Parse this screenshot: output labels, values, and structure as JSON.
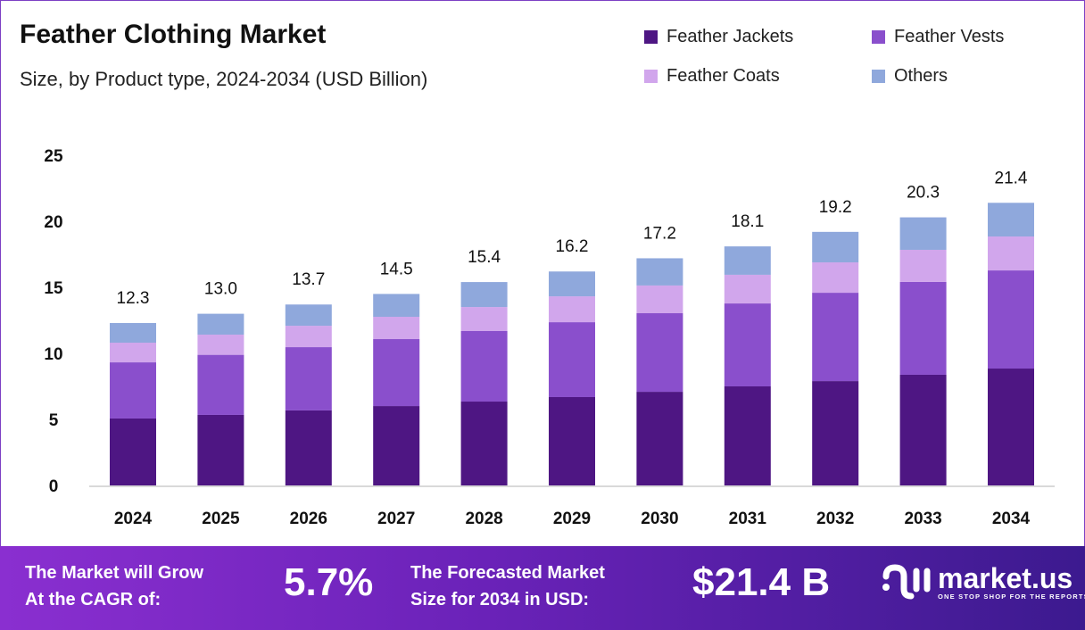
{
  "chart_data": {
    "type": "bar",
    "stacked": true,
    "title": "Feather Clothing Market",
    "subtitle": "Size, by Product type, 2024-2034 (USD Billion)",
    "categories": [
      "2024",
      "2025",
      "2026",
      "2027",
      "2028",
      "2029",
      "2030",
      "2031",
      "2032",
      "2033",
      "2034"
    ],
    "series": [
      {
        "name": "Feather Jackets",
        "color": "#4e1683",
        "values": [
          5.07,
          5.34,
          5.68,
          6.01,
          6.35,
          6.69,
          7.09,
          7.5,
          7.9,
          8.38,
          8.85
        ]
      },
      {
        "name": "Feather Vests",
        "color": "#8a4fcc",
        "values": [
          4.25,
          4.55,
          4.79,
          5.07,
          5.34,
          5.67,
          5.95,
          6.28,
          6.69,
          7.03,
          7.43
        ]
      },
      {
        "name": "Feather Coats",
        "color": "#d1a6ec",
        "values": [
          1.49,
          1.53,
          1.62,
          1.69,
          1.82,
          1.96,
          2.1,
          2.17,
          2.3,
          2.43,
          2.57
        ]
      },
      {
        "name": "Others",
        "color": "#8fa8dc",
        "values": [
          1.49,
          1.58,
          1.61,
          1.73,
          1.89,
          1.88,
          2.06,
          2.15,
          2.31,
          2.46,
          2.55
        ]
      }
    ],
    "totals": [
      "12.3",
      "13.0",
      "13.7",
      "14.5",
      "15.4",
      "16.2",
      "17.2",
      "18.1",
      "19.2",
      "20.3",
      "21.4"
    ],
    "yticks": [
      "0",
      "5",
      "10",
      "15",
      "20",
      "25"
    ],
    "ylim": [
      0,
      25
    ],
    "grid": false,
    "legend_position": "top-right"
  },
  "banner": {
    "cagr_label_1": "The Market will Grow",
    "cagr_label_2": "At the CAGR of:",
    "cagr_value": "5.7%",
    "forecast_label_1": "The Forecasted Market",
    "forecast_label_2": "Size for 2034 in USD:",
    "forecast_value": "$21.4 B",
    "logo_name": "market.us",
    "logo_tagline": "ONE STOP SHOP FOR THE REPORTS"
  }
}
